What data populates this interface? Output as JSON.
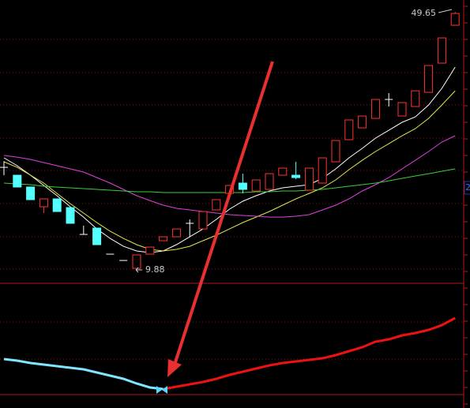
{
  "chart_data": {
    "type": "candlestick",
    "up_color": "#ff3232",
    "down_color": "#54ffff",
    "doji_color": "#ffffff",
    "ylim": [
      7.68,
      51.49
    ],
    "open": [
      25.54,
      24.32,
      22.49,
      19.43,
      20.65,
      19.3,
      15.14,
      16.12,
      12.08,
      11.1,
      9.88,
      12.08,
      14.16,
      14.77,
      16.86,
      15.99,
      18.94,
      21.5,
      23.1,
      21.87,
      22.12,
      24.32,
      24.32,
      22.0,
      23.1,
      26.4,
      29.83,
      31.66,
      33.13,
      36.07,
      33.5,
      34.97,
      37.17,
      41.7,
      47.57
    ],
    "close": [
      25.54,
      22.49,
      20.53,
      20.65,
      18.69,
      16.86,
      15.14,
      13.55,
      12.08,
      11.1,
      11.96,
      13.18,
      14.77,
      15.99,
      16.86,
      18.69,
      20.53,
      22.73,
      22.12,
      23.59,
      24.56,
      25.42,
      23.95,
      25.42,
      27.01,
      29.7,
      32.89,
      33.5,
      36.07,
      36.07,
      35.58,
      37.41,
      41.33,
      45.61,
      49.4
    ],
    "high": [
      26.5,
      24.32,
      22.49,
      20.65,
      20.65,
      19.3,
      16.5,
      16.12,
      12.08,
      11.1,
      11.96,
      13.18,
      14.77,
      15.99,
      17.47,
      18.69,
      20.53,
      22.73,
      24.56,
      23.59,
      24.56,
      25.42,
      26.4,
      25.42,
      27.01,
      29.7,
      32.89,
      33.5,
      36.07,
      37.05,
      35.58,
      37.41,
      41.33,
      45.61,
      49.65
    ],
    "low": [
      24.3,
      22.49,
      20.53,
      18.45,
      18.69,
      16.86,
      15.14,
      13.55,
      12.08,
      11.1,
      9.88,
      12.08,
      14.16,
      14.77,
      14.77,
      15.99,
      18.94,
      21.5,
      21.5,
      21.87,
      22.12,
      24.32,
      23.7,
      22.0,
      23.1,
      26.4,
      29.83,
      31.66,
      33.13,
      34.97,
      33.5,
      34.97,
      37.17,
      41.7,
      47.57
    ],
    "series": [
      {
        "color": "#ffffff",
        "values": [
          27.01,
          25.79,
          24.32,
          22.73,
          21.14,
          19.43,
          17.83,
          15.99,
          14.52,
          13.3,
          12.57,
          12.32,
          12.57,
          13.55,
          14.77,
          15.99,
          17.47,
          19.06,
          20.28,
          21.14,
          21.87,
          22.36,
          22.61,
          22.85,
          23.83,
          25.3,
          27.01,
          28.48,
          30.07,
          31.29,
          32.52,
          33.37,
          35.21,
          37.78,
          41.09
        ]
      },
      {
        "color": "#e6e64a",
        "values": [
          26.4,
          25.54,
          24.32,
          23.1,
          21.5,
          19.91,
          18.45,
          16.98,
          15.63,
          14.52,
          13.55,
          12.82,
          12.57,
          12.82,
          13.3,
          14.16,
          15.02,
          15.99,
          16.98,
          17.83,
          18.69,
          19.67,
          20.65,
          21.5,
          22.36,
          23.59,
          25.18,
          26.64,
          28.0,
          29.21,
          30.44,
          31.54,
          33.13,
          35.21,
          37.41
        ]
      },
      {
        "color": "#e040e0",
        "values": [
          27.38,
          27.13,
          26.77,
          26.28,
          25.79,
          25.3,
          24.81,
          23.95,
          23.1,
          22.12,
          21.14,
          20.4,
          19.67,
          19.18,
          18.94,
          18.69,
          18.45,
          18.2,
          18.08,
          17.96,
          17.83,
          17.83,
          17.96,
          18.2,
          18.94,
          19.67,
          20.65,
          21.87,
          22.85,
          23.95,
          25.3,
          26.64,
          28.0,
          29.46,
          30.44
        ]
      },
      {
        "color": "#3ad03a",
        "values": [
          23.1,
          22.97,
          22.85,
          22.61,
          22.48,
          22.36,
          22.24,
          22.12,
          22.0,
          21.87,
          21.75,
          21.75,
          21.63,
          21.63,
          21.63,
          21.63,
          21.63,
          21.63,
          21.63,
          21.75,
          21.75,
          21.87,
          21.87,
          22.0,
          22.12,
          22.36,
          22.61,
          22.85,
          23.1,
          23.46,
          23.83,
          24.2,
          24.56,
          24.93,
          25.3
        ]
      }
    ],
    "indicator": {
      "ylim": [
        0,
        140
      ],
      "series": [
        {
          "color": "#7fe6ff",
          "values": [
            45,
            43,
            40,
            38,
            36,
            34,
            32,
            28,
            24,
            20,
            14,
            9,
            7,
            null,
            null,
            null,
            null,
            null,
            null,
            null,
            null,
            null,
            null,
            null,
            null,
            null,
            null,
            null,
            null,
            null,
            null,
            null,
            null,
            null,
            null
          ]
        },
        {
          "color": "#ee1111",
          "values": [
            null,
            null,
            null,
            null,
            null,
            null,
            null,
            null,
            null,
            null,
            null,
            null,
            7,
            10,
            13,
            16,
            20,
            25,
            29,
            33,
            37,
            40,
            42,
            44,
            46,
            50,
            55,
            60,
            67,
            70,
            75,
            78,
            82,
            88,
            97
          ]
        }
      ]
    },
    "annotations": [
      "49.65",
      "9.88",
      "2"
    ]
  }
}
